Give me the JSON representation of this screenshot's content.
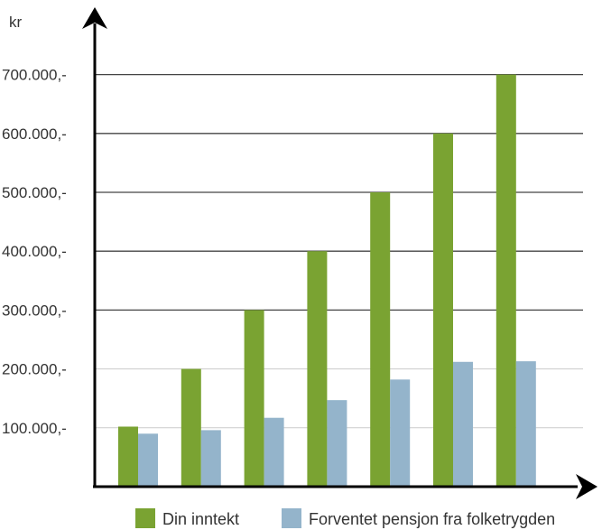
{
  "chart_data": {
    "type": "bar",
    "title": "",
    "xlabel": "",
    "ylabel": "kr",
    "ylim": [
      0,
      800000
    ],
    "yticks": [
      100000,
      200000,
      300000,
      400000,
      500000,
      600000,
      700000
    ],
    "ytick_labels": [
      "100.000,-",
      "200.000,-",
      "300.000,-",
      "400.000,-",
      "500.000,-",
      "600.000,-",
      "700.000,-"
    ],
    "grid": true,
    "legend_position": "bottom",
    "categories": [
      "",
      "",
      "",
      "",
      "",
      "",
      ""
    ],
    "series": [
      {
        "name": "Din inntekt",
        "color": "#7aa332",
        "values": [
          102000,
          200000,
          300000,
          400000,
          500000,
          600000,
          700000
        ]
      },
      {
        "name": "Forventet pensjon fra folketrygden",
        "color": "#94b4cb",
        "values": [
          90000,
          96000,
          117000,
          147000,
          182000,
          212000,
          213000
        ]
      }
    ]
  }
}
